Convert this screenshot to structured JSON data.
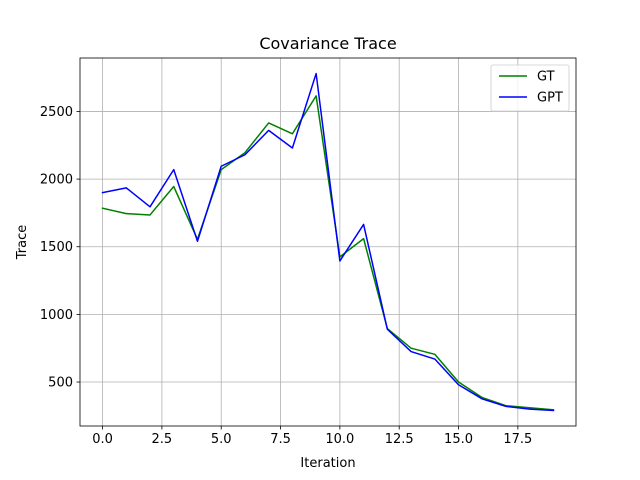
{
  "chart_data": {
    "type": "line",
    "title": "Covariance Trace",
    "xlabel": "Iteration",
    "ylabel": "Trace",
    "xlim": [
      -0.95,
      19.95
    ],
    "ylim": [
      175,
      2895
    ],
    "xticks": [
      0.0,
      2.5,
      5.0,
      7.5,
      10.0,
      12.5,
      15.0,
      17.5
    ],
    "xtick_labels": [
      "0.0",
      "2.5",
      "5.0",
      "7.5",
      "10.0",
      "12.5",
      "15.0",
      "17.5"
    ],
    "yticks": [
      500,
      1000,
      1500,
      2000,
      2500
    ],
    "ytick_labels": [
      "500",
      "1000",
      "1500",
      "2000",
      "2500"
    ],
    "grid": true,
    "legend_position": "upper right",
    "x": [
      0,
      1,
      2,
      3,
      4,
      5,
      6,
      7,
      8,
      9,
      10,
      11,
      12,
      13,
      14,
      15,
      16,
      17,
      18,
      19
    ],
    "series": [
      {
        "name": "GT",
        "color": "#008000",
        "values": [
          1785,
          1745,
          1735,
          1945,
          1555,
          2070,
          2195,
          2415,
          2335,
          2615,
          1425,
          1560,
          895,
          750,
          705,
          500,
          385,
          325,
          310,
          295
        ]
      },
      {
        "name": "GPT",
        "color": "#0000ff",
        "values": [
          1900,
          1935,
          1795,
          2070,
          1540,
          2095,
          2180,
          2360,
          2230,
          2780,
          1395,
          1665,
          890,
          725,
          670,
          480,
          375,
          320,
          300,
          290
        ]
      }
    ]
  }
}
